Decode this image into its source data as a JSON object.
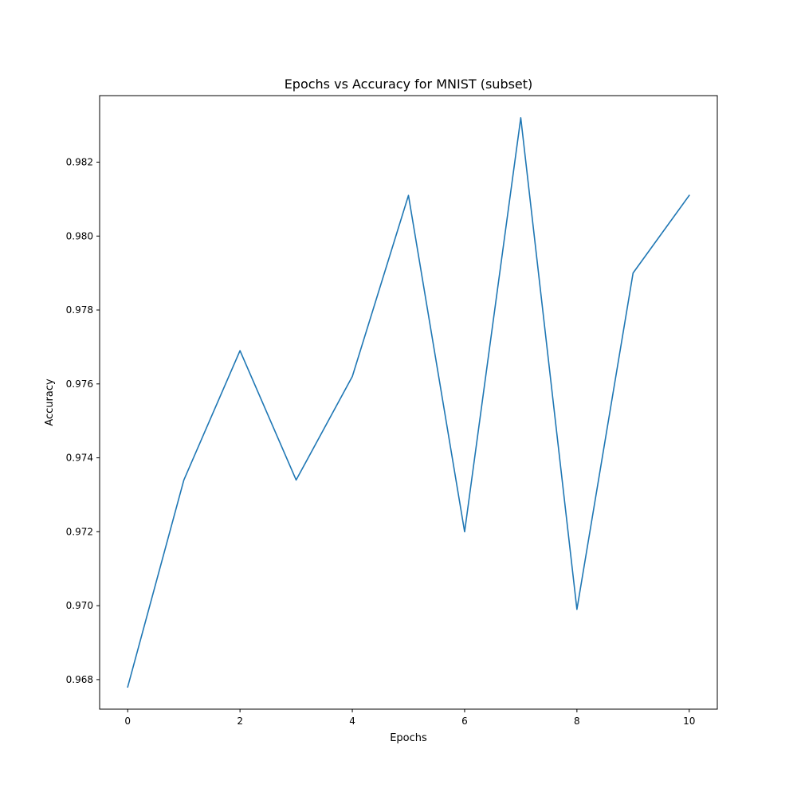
{
  "chart_data": {
    "type": "line",
    "title": "Epochs vs Accuracy for MNIST (subset)",
    "xlabel": "Epochs",
    "ylabel": "Accuracy",
    "xlim": [
      -0.5,
      10.5
    ],
    "ylim": [
      0.9672,
      0.9838
    ],
    "xticks": [
      0,
      2,
      4,
      6,
      8,
      10
    ],
    "xtick_labels": [
      "0",
      "2",
      "4",
      "6",
      "8",
      "10"
    ],
    "yticks": [
      0.968,
      0.97,
      0.972,
      0.974,
      0.976,
      0.978,
      0.98,
      0.982
    ],
    "ytick_labels": [
      "0.968",
      "0.970",
      "0.972",
      "0.974",
      "0.976",
      "0.978",
      "0.980",
      "0.982"
    ],
    "grid": false,
    "series": [
      {
        "color": "#1f77b4",
        "x": [
          0,
          1,
          2,
          3,
          4,
          5,
          6,
          7,
          8,
          9,
          10
        ],
        "y": [
          0.9678,
          0.9734,
          0.9769,
          0.9734,
          0.9762,
          0.9811,
          0.972,
          0.9832,
          0.9699,
          0.979,
          0.9811
        ]
      }
    ]
  }
}
